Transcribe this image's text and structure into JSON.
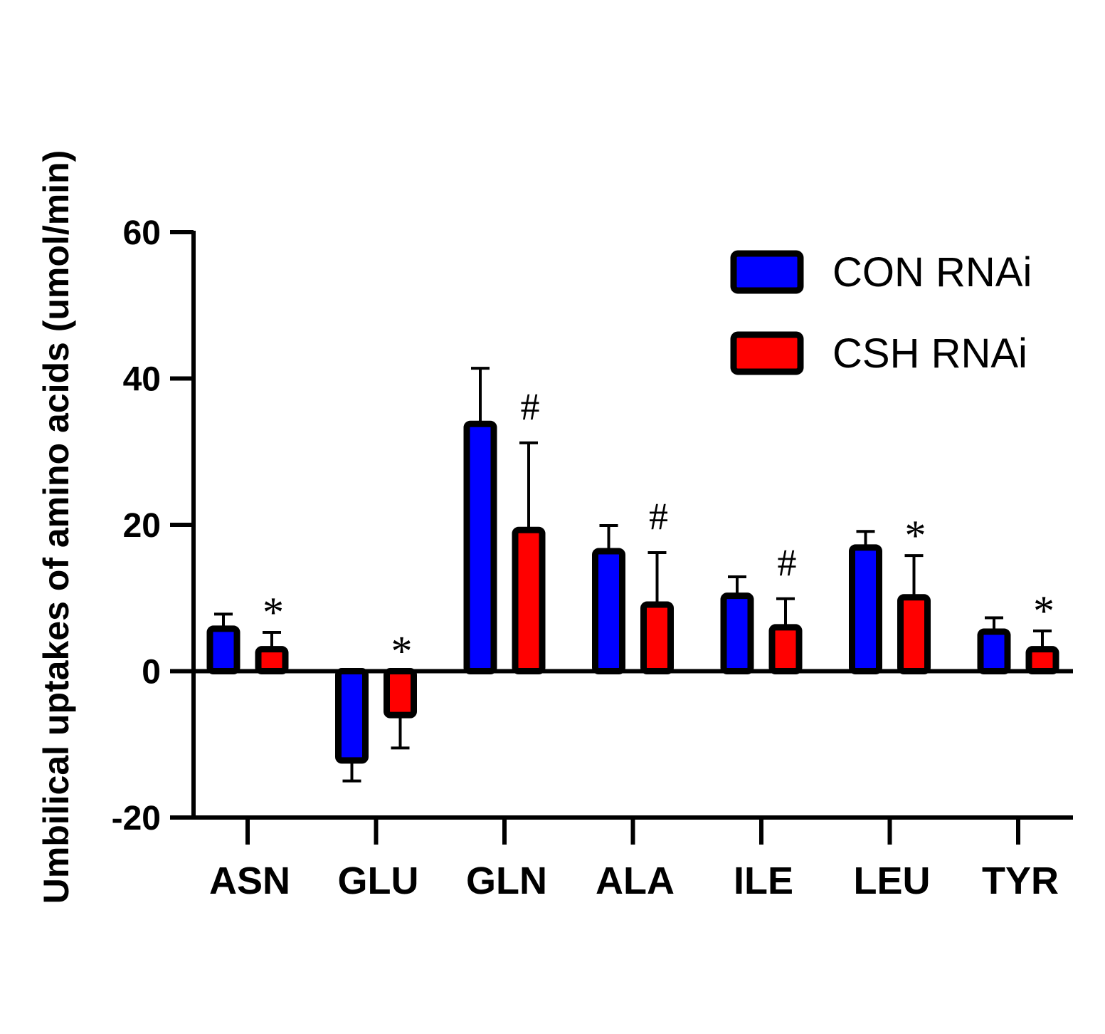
{
  "chart_data": {
    "type": "bar",
    "ylabel": "Umbilical uptakes of amino acids (umol/min)",
    "xlabel": "",
    "ylim": [
      -20,
      60
    ],
    "yticks": [
      -20,
      0,
      20,
      40,
      60
    ],
    "ytick_labels": [
      "-20",
      "0",
      "20",
      "40",
      "60"
    ],
    "categories": [
      "ASN",
      "GLU",
      "GLN",
      "ALA",
      "ILE",
      "LEU",
      "TYR"
    ],
    "legend_position": "top-right",
    "series": [
      {
        "name": "CON RNAi",
        "color": "#0000ff",
        "values": [
          5.8,
          -12.2,
          33.8,
          16.4,
          10.3,
          16.9,
          5.4
        ],
        "errors": [
          2.0,
          2.8,
          7.6,
          3.5,
          2.6,
          2.2,
          1.9
        ]
      },
      {
        "name": "CSH RNAi",
        "color": "#ff0000",
        "values": [
          3.0,
          -6.0,
          19.3,
          9.1,
          6.0,
          10.1,
          3.0
        ],
        "errors": [
          2.3,
          4.5,
          11.9,
          7.1,
          3.9,
          5.7,
          2.5
        ]
      }
    ],
    "annotations": [
      "*",
      "*",
      "#",
      "#",
      "#",
      "*",
      "*"
    ]
  }
}
